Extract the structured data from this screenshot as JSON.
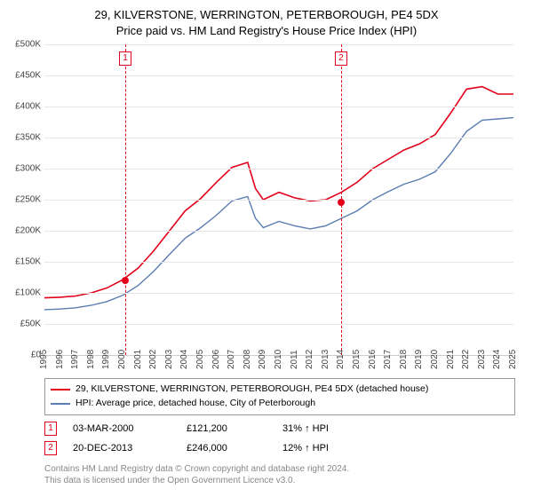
{
  "title": {
    "line1": "29, KILVERSTONE, WERRINGTON, PETERBOROUGH, PE4 5DX",
    "line2": "Price paid vs. HM Land Registry's House Price Index (HPI)"
  },
  "chart": {
    "type": "line",
    "background_color": "#ffffff",
    "grid_color": "#e6e6e6",
    "axis_color": "#cccccc",
    "xlim": [
      1995,
      2025
    ],
    "ylim": [
      0,
      500
    ],
    "ytick_step": 50,
    "ytick_prefix": "£",
    "ytick_suffix": "K",
    "xticks": [
      1995,
      1996,
      1997,
      1998,
      1999,
      2000,
      2001,
      2002,
      2003,
      2004,
      2005,
      2006,
      2007,
      2008,
      2009,
      2010,
      2011,
      2012,
      2013,
      2014,
      2015,
      2016,
      2017,
      2018,
      2019,
      2020,
      2021,
      2022,
      2023,
      2024,
      2025
    ],
    "series": [
      {
        "name": "29, KILVERSTONE, WERRINGTON, PETERBOROUGH, PE4 5DX (detached house)",
        "color": "#e2001a",
        "line_width": 1.6,
        "data": [
          [
            1995,
            92
          ],
          [
            1996,
            93
          ],
          [
            1997,
            95
          ],
          [
            1998,
            100
          ],
          [
            1999,
            108
          ],
          [
            2000,
            121
          ],
          [
            2001,
            140
          ],
          [
            2002,
            168
          ],
          [
            2003,
            200
          ],
          [
            2004,
            232
          ],
          [
            2005,
            252
          ],
          [
            2006,
            278
          ],
          [
            2007,
            302
          ],
          [
            2008,
            310
          ],
          [
            2008.5,
            268
          ],
          [
            2009,
            250
          ],
          [
            2010,
            262
          ],
          [
            2011,
            253
          ],
          [
            2012,
            248
          ],
          [
            2013,
            250
          ],
          [
            2014,
            262
          ],
          [
            2015,
            278
          ],
          [
            2016,
            300
          ],
          [
            2017,
            315
          ],
          [
            2018,
            330
          ],
          [
            2019,
            340
          ],
          [
            2020,
            355
          ],
          [
            2021,
            390
          ],
          [
            2022,
            428
          ],
          [
            2023,
            432
          ],
          [
            2024,
            420
          ],
          [
            2025,
            420
          ]
        ]
      },
      {
        "name": "HPI: Average price, detached house, City of Peterborough",
        "color": "#5b7db1",
        "line_width": 1.4,
        "data": [
          [
            1995,
            73
          ],
          [
            1996,
            74
          ],
          [
            1997,
            76
          ],
          [
            1998,
            80
          ],
          [
            1999,
            86
          ],
          [
            2000,
            96
          ],
          [
            2001,
            112
          ],
          [
            2002,
            135
          ],
          [
            2003,
            162
          ],
          [
            2004,
            188
          ],
          [
            2005,
            205
          ],
          [
            2006,
            225
          ],
          [
            2007,
            248
          ],
          [
            2008,
            255
          ],
          [
            2008.5,
            220
          ],
          [
            2009,
            205
          ],
          [
            2010,
            215
          ],
          [
            2011,
            208
          ],
          [
            2012,
            203
          ],
          [
            2013,
            208
          ],
          [
            2014,
            220
          ],
          [
            2015,
            232
          ],
          [
            2016,
            250
          ],
          [
            2017,
            263
          ],
          [
            2018,
            275
          ],
          [
            2019,
            283
          ],
          [
            2020,
            295
          ],
          [
            2021,
            325
          ],
          [
            2022,
            360
          ],
          [
            2023,
            378
          ],
          [
            2024,
            380
          ],
          [
            2025,
            382
          ]
        ]
      }
    ],
    "markers": [
      {
        "id": "1",
        "x": 2000.17,
        "y": 121.2,
        "line_color": "#e2001a",
        "dot_color": "#e2001a",
        "date": "03-MAR-2000",
        "price": "£121,200",
        "delta": "31% ↑ HPI"
      },
      {
        "id": "2",
        "x": 2013.97,
        "y": 246.0,
        "line_color": "#e2001a",
        "dot_color": "#e2001a",
        "date": "20-DEC-2013",
        "price": "£246,000",
        "delta": "12% ↑ HPI"
      }
    ]
  },
  "legend_label": "Legend",
  "footer": {
    "line1": "Contains HM Land Registry data © Crown copyright and database right 2024.",
    "line2": "This data is licensed under the Open Government Licence v3.0."
  }
}
